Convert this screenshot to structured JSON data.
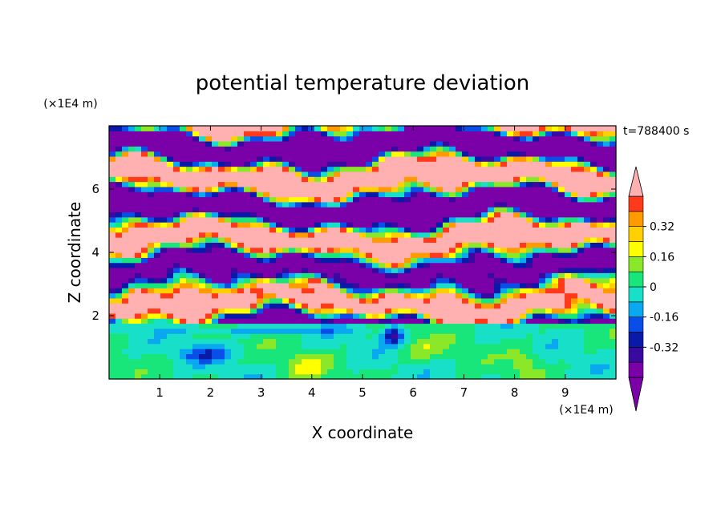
{
  "chart_data": {
    "type": "heatmap",
    "title": "potential temperature deviation",
    "xlabel": "X coordinate",
    "ylabel": "Z coordinate",
    "x_unit": "(×1E4 m)",
    "y_unit": "(×1E4 m)",
    "time_label": "t=788400 s",
    "xlim": [
      0,
      10
    ],
    "ylim": [
      0,
      8
    ],
    "x_ticks": [
      "1",
      "2",
      "3",
      "4",
      "5",
      "6",
      "7",
      "8",
      "9"
    ],
    "y_ticks": [
      "2",
      "4",
      "6"
    ],
    "colorbar": {
      "levels": [
        -0.48,
        -0.4,
        -0.32,
        -0.24,
        -0.16,
        -0.08,
        0,
        0.08,
        0.16,
        0.24,
        0.32,
        0.4,
        0.48
      ],
      "labels": [
        "-0.32",
        "-0.16",
        "0",
        "0.16",
        "0.32"
      ],
      "colors": [
        "#7a00a8",
        "#3a0aa0",
        "#0a1aa8",
        "#0a4ee8",
        "#0aa8f0",
        "#18e0c8",
        "#18e67a",
        "#8ae828",
        "#ffff00",
        "#ffd000",
        "#ff9a00",
        "#ff3a1a"
      ],
      "under_color": "#7a00a8",
      "over_color": "#ffb0b0"
    },
    "regions": [
      {
        "band": "lower boundary layer (z 0–1.8)",
        "dominant_values": "-0.16 to 0.16"
      },
      {
        "band": "upper layer (z 1.8–8)",
        "dominant_values": "alternating < -0.48 and > 0.48"
      }
    ]
  }
}
